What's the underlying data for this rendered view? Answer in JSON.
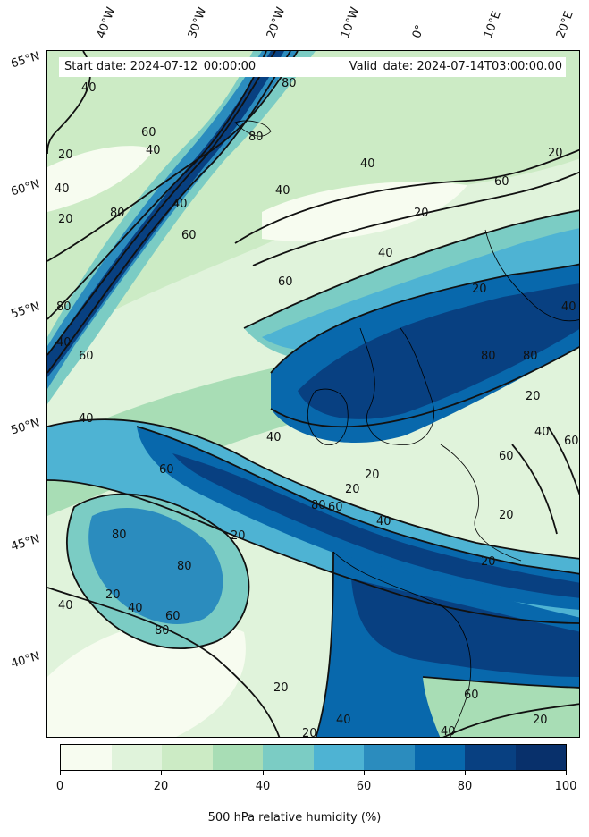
{
  "header": {
    "start_date": "Start date: 2024-07-12_00:00:00",
    "valid_date": "Valid_date: 2024-07-14T03:00:00.00"
  },
  "longitude_labels": [
    "40°W",
    "30°W",
    "20°W",
    "10°W",
    "0°",
    "10°E",
    "20°E"
  ],
  "latitude_labels": [
    "65°N",
    "60°N",
    "55°N",
    "50°N",
    "45°N",
    "40°N"
  ],
  "colorbar": {
    "label": "500 hPa relative humidity (%)",
    "ticks": [
      "0",
      "20",
      "40",
      "60",
      "80",
      "100"
    ],
    "colors": [
      "#f7fcf0",
      "#e0f3db",
      "#ccebc5",
      "#a8ddb5",
      "#7bccc4",
      "#4eb3d3",
      "#2b8cbe",
      "#0868ac",
      "#084081",
      "#08306b"
    ]
  },
  "contour_labels": [
    "20",
    "40",
    "60",
    "80"
  ],
  "map": {
    "field": "500 hPa relative humidity",
    "units": "%",
    "contour_levels": [
      20,
      40,
      60,
      80
    ],
    "fill_range": [
      0,
      100
    ],
    "fill_step": 10
  }
}
